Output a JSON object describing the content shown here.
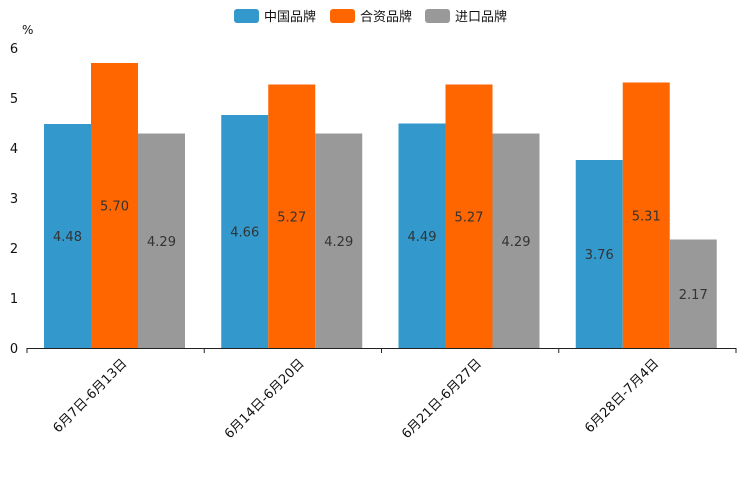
{
  "chart_data": {
    "type": "bar",
    "title": "",
    "ylabel": "%",
    "xlabel": "",
    "ylim": [
      0,
      6
    ],
    "yticks": [
      0,
      1,
      2,
      3,
      4,
      5,
      6
    ],
    "legend_position": "top-center",
    "categories": [
      "6月7日-6月13日",
      "6月14日-6月20日",
      "6月21日-6月27日",
      "6月28日-7月4日"
    ],
    "series": [
      {
        "name": "中国品牌",
        "color": "#3399cc",
        "values": [
          4.48,
          4.66,
          4.49,
          3.76
        ],
        "labels": [
          "4.48",
          "4.66",
          "4.49",
          "3.76"
        ]
      },
      {
        "name": "合资品牌",
        "color": "#ff6600",
        "values": [
          5.7,
          5.27,
          5.27,
          5.31
        ],
        "labels": [
          "5.70",
          "5.27",
          "5.27",
          "5.31"
        ]
      },
      {
        "name": "进口品牌",
        "color": "#999999",
        "values": [
          4.29,
          4.29,
          4.29,
          2.17
        ],
        "labels": [
          "4.29",
          "4.29",
          "4.29",
          "2.17"
        ]
      }
    ]
  }
}
